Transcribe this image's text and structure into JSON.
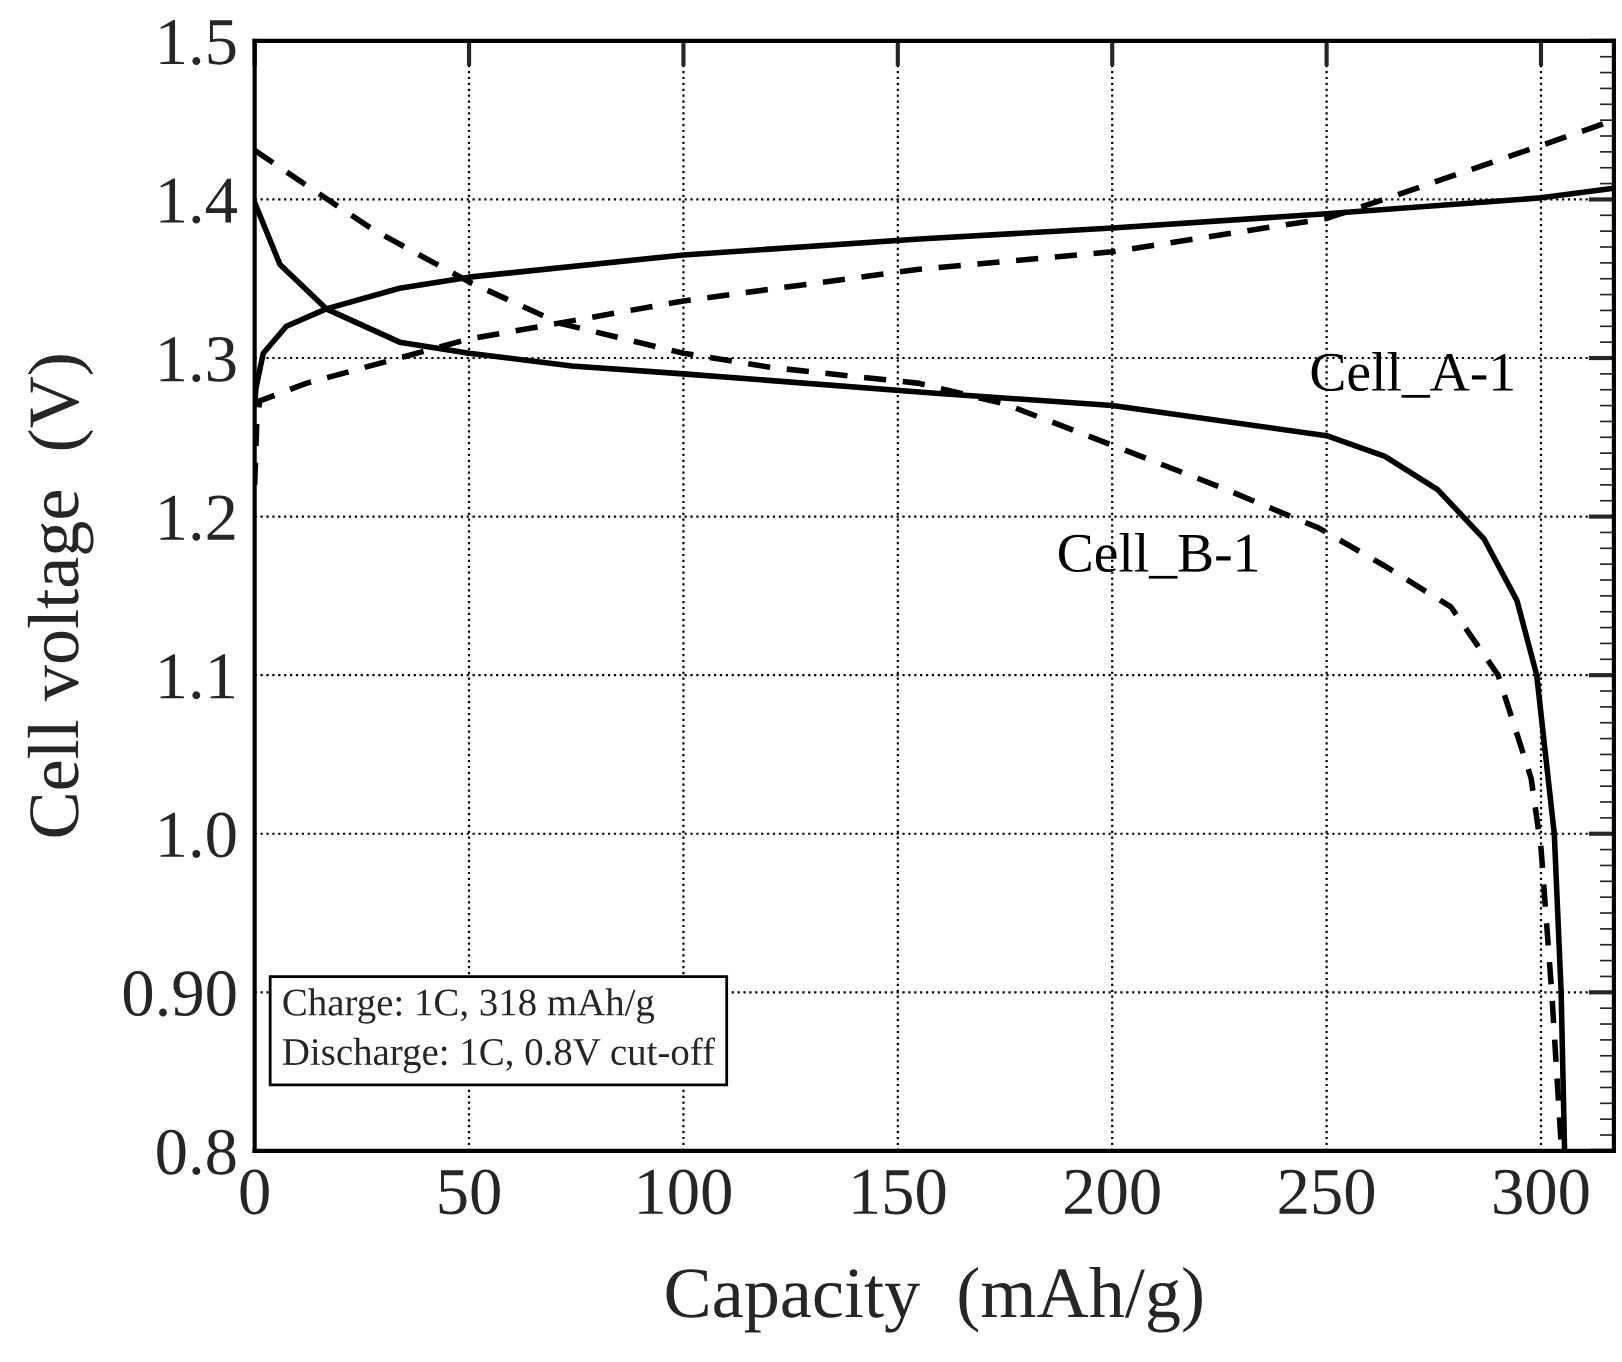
{
  "chart_data": {
    "type": "line",
    "xlabel": "Capacity  (mAh/g)",
    "ylabel": "Cell voltage  (V)",
    "xlim": [
      0,
      317
    ],
    "ylim": [
      0.8,
      1.5
    ],
    "xticks": [
      0,
      50,
      100,
      150,
      200,
      250,
      300
    ],
    "yticks": [
      {
        "value": 0.8,
        "label": "0.8"
      },
      {
        "value": 0.9,
        "label": "0.90"
      },
      {
        "value": 1.0,
        "label": "1.0"
      },
      {
        "value": 1.1,
        "label": "1.1"
      },
      {
        "value": 1.2,
        "label": "1.2"
      },
      {
        "value": 1.3,
        "label": "1.3"
      },
      {
        "value": 1.4,
        "label": "1.4"
      },
      {
        "value": 1.5,
        "label": "1.5"
      }
    ],
    "grid": true,
    "legend": false,
    "marker": "none",
    "series": [
      {
        "color": "#000000",
        "line_style": "solid",
        "x": [
          0,
          0.3,
          2,
          7.4,
          16.7,
          33.8,
          50,
          100,
          155,
          200,
          250,
          300,
          317
        ],
        "values": [
          1.27,
          1.281,
          1.303,
          1.32,
          1.331,
          1.344,
          1.351,
          1.365,
          1.375,
          1.382,
          1.391,
          1.401,
          1.407
        ]
      },
      {
        "color": "#000000",
        "line_style": "solid",
        "x": [
          0,
          5.9,
          16.7,
          33.8,
          50,
          74,
          100,
          158,
          200,
          250,
          263.6,
          275.9,
          286.7,
          294.4,
          299,
          303.1,
          304.7,
          305.5
        ],
        "values": [
          1.398,
          1.359,
          1.331,
          1.31,
          1.303,
          1.295,
          1.29,
          1.278,
          1.27,
          1.251,
          1.238,
          1.217,
          1.186,
          1.147,
          1.1,
          1.0,
          0.9,
          0.8
        ]
      },
      {
        "color": "#000000",
        "line_style": "dashed",
        "x": [
          0,
          0.5,
          1.2,
          12,
          50,
          71,
          100,
          155,
          200,
          250,
          266.6,
          300,
          317
        ],
        "values": [
          1.22,
          1.26,
          1.273,
          1.284,
          1.312,
          1.322,
          1.336,
          1.356,
          1.367,
          1.388,
          1.403,
          1.434,
          1.45
        ]
      },
      {
        "color": "#000000",
        "line_style": "dashed",
        "x": [
          0,
          12,
          27.6,
          50,
          71,
          100,
          120.6,
          155,
          175,
          200,
          224.8,
          248,
          263.5,
          279,
          290,
          297.7,
          300,
          302.5,
          304.8
        ],
        "values": [
          1.431,
          1.409,
          1.381,
          1.348,
          1.322,
          1.303,
          1.294,
          1.284,
          1.271,
          1.245,
          1.219,
          1.193,
          1.169,
          1.143,
          1.1,
          1.035,
          0.991,
          0.9,
          0.8
        ]
      }
    ],
    "annotations": [
      "Cell_A-1",
      "Cell_B-1",
      "Charge: 1C, 318 mAh/g\nDischarge: 1C, 0.8V cut-off"
    ]
  }
}
